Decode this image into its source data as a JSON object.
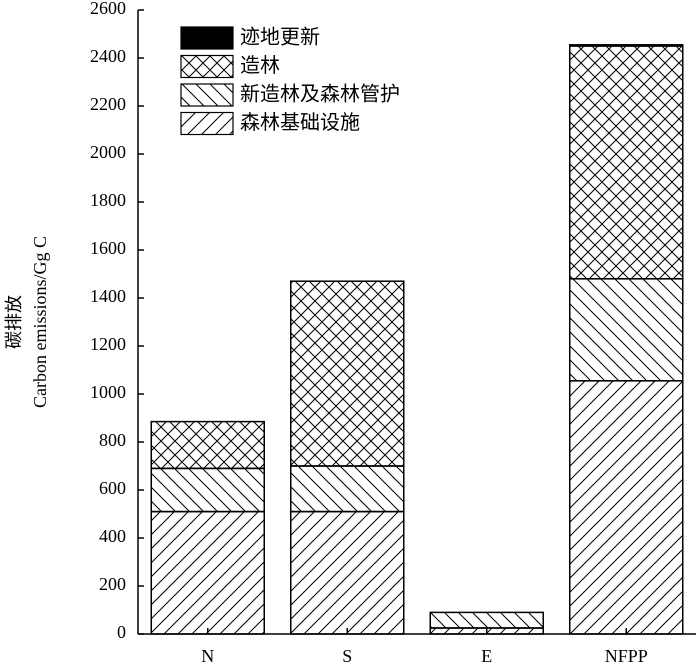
{
  "chart_data": {
    "type": "stacked_bar",
    "ylabel": [
      "碳排放",
      "Carbon emissions/Gg C"
    ],
    "categories": [
      "N",
      "S",
      "E",
      "NFPP"
    ],
    "series": [
      {
        "name": "迹地更新",
        "color": "#000000",
        "hatch": "solid",
        "values": [
          0,
          0,
          0,
          5
        ]
      },
      {
        "name": "造林",
        "color": "#000000",
        "hatch": "cross",
        "values": [
          195,
          770,
          0,
          970
        ]
      },
      {
        "name": "新造林及森林管护",
        "color": "#000000",
        "hatch": "back",
        "values": [
          180,
          190,
          65,
          425
        ]
      },
      {
        "name": "森林基础设施",
        "color": "#000000",
        "hatch": "forward",
        "values": [
          510,
          510,
          25,
          1055
        ]
      }
    ],
    "ylim": [
      0,
      2600
    ],
    "yticks": [
      0,
      200,
      400,
      600,
      800,
      1000,
      1200,
      1400,
      1600,
      1800,
      2000,
      2200,
      2400,
      2600
    ]
  }
}
